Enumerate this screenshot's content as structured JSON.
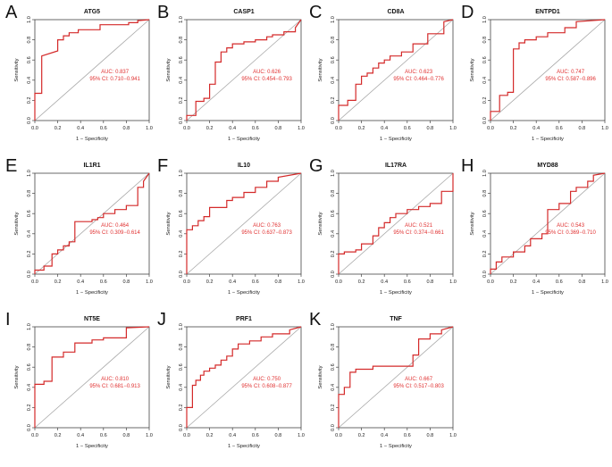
{
  "figure": {
    "xlabel": "1 − Specificity",
    "ylabel": "Sensitivity",
    "xticks": [
      "0.0",
      "0.2",
      "0.4",
      "0.6",
      "0.8",
      "1.0"
    ],
    "yticks": [
      "0.0",
      "0.2",
      "0.4",
      "0.6",
      "0.8",
      "1.0"
    ],
    "curve_color": "#d42a2a",
    "text_color": "#e03030",
    "diagonal_color": "#a8a8a8"
  },
  "chart_data": [
    {
      "type": "line",
      "letter": "A",
      "title": "ATG5",
      "auc_label": "AUC: 0.837",
      "ci_label": "95% CI: 0.710−0.941",
      "xlabel": "1 − Specificity",
      "ylabel": "Sensitivity",
      "xlim": [
        0,
        1
      ],
      "ylim": [
        0,
        1
      ],
      "x": [
        0,
        0,
        0.06,
        0.06,
        0.2,
        0.2,
        0.25,
        0.25,
        0.3,
        0.3,
        0.38,
        0.38,
        0.57,
        0.57,
        0.82,
        0.82,
        0.9,
        0.9,
        1
      ],
      "y": [
        0,
        0.27,
        0.27,
        0.64,
        0.69,
        0.8,
        0.8,
        0.84,
        0.84,
        0.87,
        0.87,
        0.9,
        0.9,
        0.95,
        0.95,
        0.97,
        0.97,
        0.99,
        1
      ]
    },
    {
      "type": "line",
      "letter": "B",
      "title": "CASP1",
      "auc_label": "AUC: 0.626",
      "ci_label": "95% CI: 0.454−0.793",
      "xlabel": "1 − Specificity",
      "ylabel": "Sensitivity",
      "xlim": [
        0,
        1
      ],
      "ylim": [
        0,
        1
      ],
      "x": [
        0,
        0,
        0.08,
        0.08,
        0.15,
        0.15,
        0.2,
        0.2,
        0.25,
        0.25,
        0.3,
        0.3,
        0.35,
        0.35,
        0.4,
        0.4,
        0.5,
        0.5,
        0.6,
        0.6,
        0.7,
        0.7,
        0.75,
        0.75,
        0.85,
        0.85,
        0.95,
        0.95,
        1
      ],
      "y": [
        0,
        0.05,
        0.05,
        0.19,
        0.19,
        0.22,
        0.22,
        0.36,
        0.36,
        0.58,
        0.58,
        0.68,
        0.68,
        0.72,
        0.72,
        0.76,
        0.76,
        0.78,
        0.78,
        0.8,
        0.8,
        0.83,
        0.83,
        0.85,
        0.85,
        0.88,
        0.88,
        0.92,
        1
      ]
    },
    {
      "type": "line",
      "letter": "C",
      "title": "CD8A",
      "auc_label": "AUC: 0.623",
      "ci_label": "95% CI: 0.464−0.776",
      "xlabel": "1 − Specificity",
      "ylabel": "Sensitivity",
      "xlim": [
        0,
        1
      ],
      "ylim": [
        0,
        1
      ],
      "x": [
        0,
        0,
        0.08,
        0.08,
        0.15,
        0.15,
        0.2,
        0.2,
        0.25,
        0.25,
        0.3,
        0.3,
        0.35,
        0.35,
        0.4,
        0.4,
        0.45,
        0.45,
        0.55,
        0.55,
        0.65,
        0.65,
        0.78,
        0.78,
        0.92,
        0.92,
        1
      ],
      "y": [
        0,
        0.15,
        0.15,
        0.2,
        0.2,
        0.36,
        0.36,
        0.44,
        0.44,
        0.47,
        0.47,
        0.52,
        0.52,
        0.57,
        0.57,
        0.6,
        0.6,
        0.64,
        0.64,
        0.68,
        0.68,
        0.76,
        0.76,
        0.86,
        0.86,
        0.98,
        1
      ]
    },
    {
      "type": "line",
      "letter": "D",
      "title": "ENTPD1",
      "auc_label": "AUC: 0.747",
      "ci_label": "95% CI: 0.587−0.896",
      "xlabel": "1 − Specificity",
      "ylabel": "Sensitivity",
      "xlim": [
        0,
        1
      ],
      "ylim": [
        0,
        1
      ],
      "x": [
        0,
        0,
        0.08,
        0.08,
        0.15,
        0.15,
        0.2,
        0.2,
        0.25,
        0.25,
        0.3,
        0.3,
        0.4,
        0.4,
        0.5,
        0.5,
        0.65,
        0.65,
        0.75,
        0.75,
        1
      ],
      "y": [
        0,
        0.09,
        0.09,
        0.25,
        0.25,
        0.28,
        0.28,
        0.71,
        0.71,
        0.77,
        0.77,
        0.8,
        0.8,
        0.83,
        0.83,
        0.87,
        0.87,
        0.92,
        0.92,
        0.98,
        1
      ]
    },
    {
      "type": "line",
      "letter": "E",
      "title": "IL1R1",
      "auc_label": "AUC: 0.464",
      "ci_label": "95% CI: 0.309−0.614",
      "xlabel": "1 − Specificity",
      "ylabel": "Sensitivity",
      "xlim": [
        0,
        1
      ],
      "ylim": [
        0,
        1
      ],
      "x": [
        0,
        0,
        0.08,
        0.08,
        0.15,
        0.15,
        0.2,
        0.2,
        0.25,
        0.25,
        0.3,
        0.3,
        0.35,
        0.35,
        0.5,
        0.5,
        0.55,
        0.55,
        0.6,
        0.6,
        0.7,
        0.7,
        0.8,
        0.8,
        0.9,
        0.9,
        0.95,
        0.95,
        1
      ],
      "y": [
        0,
        0.04,
        0.04,
        0.08,
        0.08,
        0.2,
        0.2,
        0.24,
        0.24,
        0.28,
        0.28,
        0.32,
        0.32,
        0.52,
        0.52,
        0.54,
        0.54,
        0.56,
        0.56,
        0.6,
        0.6,
        0.64,
        0.64,
        0.68,
        0.68,
        0.86,
        0.86,
        0.92,
        1
      ]
    },
    {
      "type": "line",
      "letter": "F",
      "title": "IL10",
      "auc_label": "AUC: 0.763",
      "ci_label": "95% CI: 0.637−0.873",
      "xlabel": "1 − Specificity",
      "ylabel": "Sensitivity",
      "xlim": [
        0,
        1
      ],
      "ylim": [
        0,
        1
      ],
      "x": [
        0,
        0,
        0.05,
        0.05,
        0.1,
        0.1,
        0.15,
        0.15,
        0.2,
        0.2,
        0.35,
        0.35,
        0.4,
        0.4,
        0.5,
        0.5,
        0.6,
        0.6,
        0.7,
        0.7,
        0.8,
        0.8,
        1
      ],
      "y": [
        0,
        0.44,
        0.44,
        0.48,
        0.48,
        0.53,
        0.53,
        0.57,
        0.57,
        0.66,
        0.66,
        0.73,
        0.73,
        0.76,
        0.76,
        0.81,
        0.81,
        0.86,
        0.86,
        0.92,
        0.92,
        0.96,
        1
      ]
    },
    {
      "type": "line",
      "letter": "G",
      "title": "IL17RA",
      "auc_label": "AUC: 0.521",
      "ci_label": "95% CI: 0.374−0.661",
      "xlabel": "1 − Specificity",
      "ylabel": "Sensitivity",
      "xlim": [
        0,
        1
      ],
      "ylim": [
        0,
        1
      ],
      "x": [
        0,
        0,
        0.05,
        0.05,
        0.15,
        0.15,
        0.2,
        0.2,
        0.3,
        0.3,
        0.35,
        0.35,
        0.4,
        0.4,
        0.45,
        0.45,
        0.5,
        0.5,
        0.6,
        0.6,
        0.7,
        0.7,
        0.8,
        0.8,
        0.9,
        0.9,
        1,
        1
      ],
      "y": [
        0,
        0.2,
        0.2,
        0.22,
        0.22,
        0.24,
        0.24,
        0.3,
        0.3,
        0.38,
        0.38,
        0.46,
        0.46,
        0.51,
        0.51,
        0.56,
        0.56,
        0.6,
        0.6,
        0.64,
        0.64,
        0.67,
        0.67,
        0.7,
        0.7,
        0.82,
        0.82,
        1
      ]
    },
    {
      "type": "line",
      "letter": "H",
      "title": "MYD88",
      "auc_label": "AUC: 0.543",
      "ci_label": "95% CI: 0.369−0.710",
      "xlabel": "1 − Specificity",
      "ylabel": "Sensitivity",
      "xlim": [
        0,
        1
      ],
      "ylim": [
        0,
        1
      ],
      "x": [
        0,
        0,
        0.05,
        0.05,
        0.1,
        0.1,
        0.2,
        0.2,
        0.3,
        0.3,
        0.35,
        0.35,
        0.45,
        0.45,
        0.5,
        0.5,
        0.6,
        0.6,
        0.7,
        0.7,
        0.75,
        0.75,
        0.85,
        0.85,
        0.9,
        0.9,
        1
      ],
      "y": [
        0,
        0.05,
        0.05,
        0.12,
        0.12,
        0.17,
        0.17,
        0.22,
        0.22,
        0.28,
        0.28,
        0.35,
        0.35,
        0.4,
        0.4,
        0.64,
        0.64,
        0.7,
        0.7,
        0.82,
        0.82,
        0.86,
        0.86,
        0.92,
        0.92,
        0.98,
        1
      ]
    },
    {
      "type": "line",
      "letter": "I",
      "title": "NT5E",
      "auc_label": "AUC: 0.810",
      "ci_label": "95% CI: 0.681−0.913",
      "xlabel": "1 − Specificity",
      "ylabel": "Sensitivity",
      "xlim": [
        0,
        1
      ],
      "ylim": [
        0,
        1
      ],
      "x": [
        0,
        0,
        0.08,
        0.08,
        0.15,
        0.15,
        0.25,
        0.25,
        0.35,
        0.35,
        0.5,
        0.5,
        0.6,
        0.6,
        0.8,
        0.8,
        1
      ],
      "y": [
        0,
        0.43,
        0.43,
        0.46,
        0.46,
        0.7,
        0.7,
        0.75,
        0.75,
        0.84,
        0.84,
        0.87,
        0.87,
        0.89,
        0.89,
        0.99,
        1
      ]
    },
    {
      "type": "line",
      "letter": "J",
      "title": "PRF1",
      "auc_label": "AUC: 0.750",
      "ci_label": "95% CI: 0.608−0.877",
      "xlabel": "1 − Specificity",
      "ylabel": "Sensitivity",
      "xlim": [
        0,
        1
      ],
      "ylim": [
        0,
        1
      ],
      "x": [
        0,
        0,
        0.05,
        0.05,
        0.08,
        0.08,
        0.12,
        0.12,
        0.15,
        0.15,
        0.2,
        0.2,
        0.25,
        0.25,
        0.3,
        0.3,
        0.35,
        0.35,
        0.4,
        0.4,
        0.45,
        0.45,
        0.55,
        0.55,
        0.65,
        0.65,
        0.75,
        0.75,
        0.9,
        0.9,
        1
      ],
      "y": [
        0,
        0.2,
        0.2,
        0.42,
        0.42,
        0.47,
        0.47,
        0.52,
        0.52,
        0.56,
        0.56,
        0.59,
        0.59,
        0.62,
        0.62,
        0.67,
        0.67,
        0.71,
        0.71,
        0.78,
        0.78,
        0.83,
        0.83,
        0.86,
        0.86,
        0.9,
        0.9,
        0.93,
        0.93,
        0.97,
        1
      ]
    },
    {
      "type": "line",
      "letter": "K",
      "title": "TNF",
      "auc_label": "AUC: 0.667",
      "ci_label": "95% CI: 0.517−0.803",
      "xlabel": "1 − Specificity",
      "ylabel": "Sensitivity",
      "xlim": [
        0,
        1
      ],
      "ylim": [
        0,
        1
      ],
      "x": [
        0,
        0,
        0.05,
        0.05,
        0.1,
        0.1,
        0.15,
        0.15,
        0.3,
        0.3,
        0.65,
        0.65,
        0.7,
        0.7,
        0.8,
        0.8,
        0.9,
        0.9,
        1
      ],
      "y": [
        0,
        0.33,
        0.33,
        0.4,
        0.4,
        0.55,
        0.55,
        0.58,
        0.58,
        0.61,
        0.61,
        0.72,
        0.72,
        0.88,
        0.88,
        0.93,
        0.93,
        0.97,
        1
      ]
    }
  ]
}
